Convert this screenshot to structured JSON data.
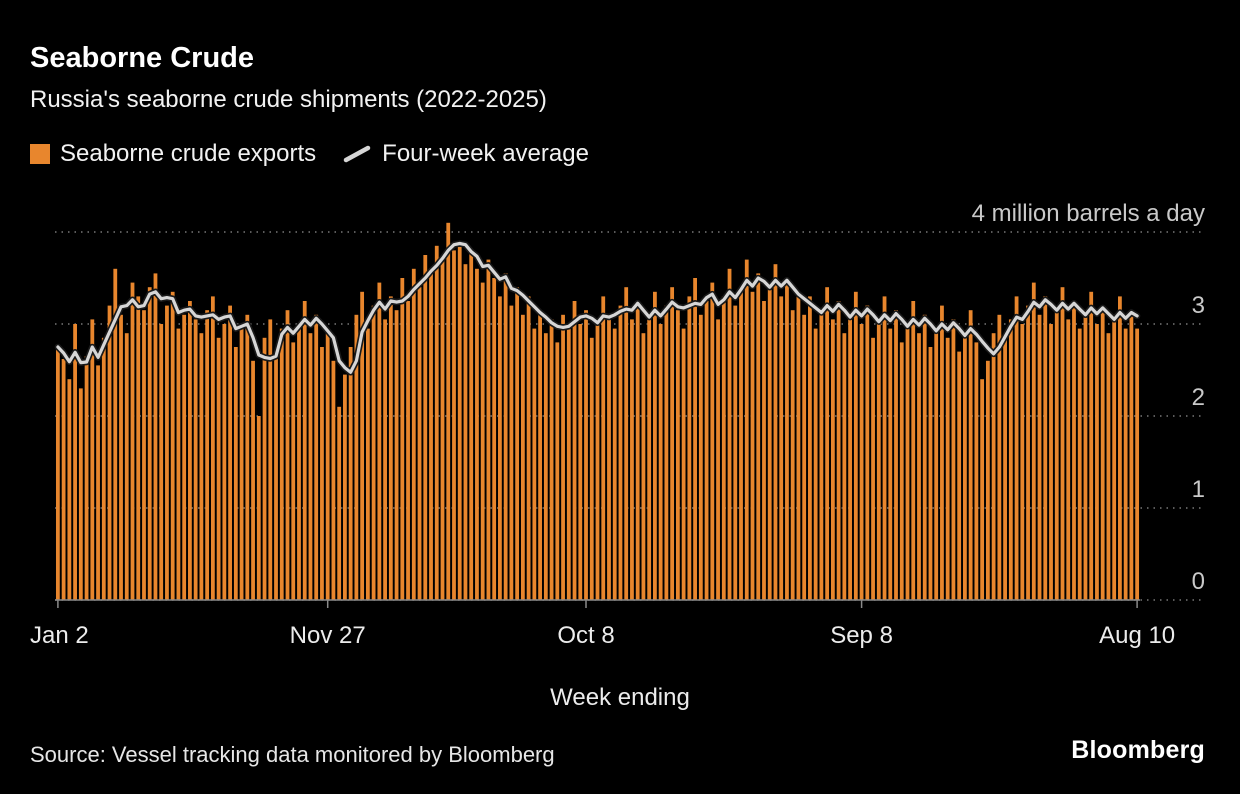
{
  "header": {
    "title": "Seaborne Crude",
    "subtitle": "Russia's seaborne crude shipments (2022-2025)"
  },
  "legend": [
    {
      "label": "Seaborne crude exports",
      "swatch": "bar",
      "color": "#E8862D"
    },
    {
      "label": "Four-week average",
      "swatch": "line",
      "color": "#D6D6D6"
    }
  ],
  "chart_data": {
    "type": "bar",
    "title": "Seaborne Crude",
    "subtitle": "Russia's seaborne crude shipments (2022-2025)",
    "top_label": "4 million barrels a day",
    "xlabel": "Week ending",
    "ylabel": "million barrels a day",
    "ylim": [
      0,
      4
    ],
    "yticks": [
      0,
      1,
      2,
      3
    ],
    "grid": "dotted-horizontal",
    "legend_position": "top-left",
    "x_ticks": [
      {
        "label": "Jan 2",
        "week_index": 0
      },
      {
        "label": "Nov 27",
        "week_index": 47
      },
      {
        "label": "Oct 8",
        "week_index": 92
      },
      {
        "label": "Sep 8",
        "week_index": 140
      },
      {
        "label": "Aug 10",
        "week_index": 188
      }
    ],
    "series": [
      {
        "name": "Seaborne crude exports",
        "type": "bar",
        "color": "#E8862D",
        "unit": "million barrels a day",
        "frequency": "weekly",
        "values": [
          2.75,
          2.62,
          2.4,
          3.0,
          2.3,
          2.65,
          3.05,
          2.55,
          2.85,
          3.2,
          3.6,
          3.1,
          2.9,
          3.45,
          3.3,
          3.15,
          3.4,
          3.55,
          3.0,
          3.2,
          3.35,
          2.95,
          3.1,
          3.25,
          3.05,
          2.9,
          3.15,
          3.3,
          2.85,
          3.0,
          3.2,
          2.75,
          2.95,
          3.1,
          2.6,
          2.0,
          2.85,
          3.05,
          2.7,
          2.95,
          3.15,
          2.8,
          3.0,
          3.25,
          2.9,
          3.1,
          2.75,
          2.95,
          2.6,
          2.1,
          2.45,
          2.75,
          3.1,
          3.35,
          2.95,
          3.2,
          3.45,
          3.05,
          3.3,
          3.15,
          3.5,
          3.25,
          3.6,
          3.4,
          3.75,
          3.55,
          3.85,
          3.7,
          4.1,
          3.8,
          3.9,
          3.65,
          3.8,
          3.6,
          3.45,
          3.7,
          3.5,
          3.3,
          3.55,
          3.2,
          3.4,
          3.1,
          3.3,
          2.95,
          3.15,
          2.9,
          3.05,
          2.8,
          3.1,
          2.95,
          3.25,
          3.0,
          3.15,
          2.85,
          3.05,
          3.3,
          3.1,
          2.95,
          3.2,
          3.4,
          3.05,
          3.25,
          2.9,
          3.1,
          3.35,
          3.0,
          3.2,
          3.4,
          3.15,
          2.95,
          3.3,
          3.5,
          3.1,
          3.25,
          3.45,
          3.05,
          3.3,
          3.6,
          3.2,
          3.4,
          3.7,
          3.35,
          3.55,
          3.25,
          3.45,
          3.65,
          3.3,
          3.5,
          3.15,
          3.35,
          3.1,
          3.3,
          2.95,
          3.15,
          3.4,
          3.05,
          3.25,
          2.9,
          3.1,
          3.35,
          3.0,
          3.2,
          2.85,
          3.05,
          3.3,
          2.95,
          3.15,
          2.8,
          3.0,
          3.25,
          2.9,
          3.1,
          2.75,
          2.95,
          3.2,
          2.85,
          3.05,
          2.7,
          2.9,
          3.15,
          2.8,
          2.4,
          2.6,
          2.9,
          3.1,
          2.85,
          3.05,
          3.3,
          3.0,
          3.2,
          3.45,
          3.1,
          3.3,
          3.0,
          3.2,
          3.4,
          3.05,
          3.25,
          2.95,
          3.15,
          3.35,
          3.0,
          3.2,
          2.9,
          3.1,
          3.3,
          2.95,
          3.15,
          2.95
        ]
      },
      {
        "name": "Four-week average",
        "type": "line",
        "color": "#D6D6D6",
        "derived_from": "4-week moving average of Seaborne crude exports"
      }
    ]
  },
  "footer": {
    "source": "Source: Vessel tracking data monitored by Bloomberg",
    "brand": "Bloomberg"
  },
  "colors": {
    "background": "#000000",
    "bar": "#E8862D",
    "line": "#D6D6D6",
    "grid": "#787878",
    "axis": "#8a8a8a",
    "tick_text": "#c9c9c9",
    "text": "#ffffff"
  }
}
